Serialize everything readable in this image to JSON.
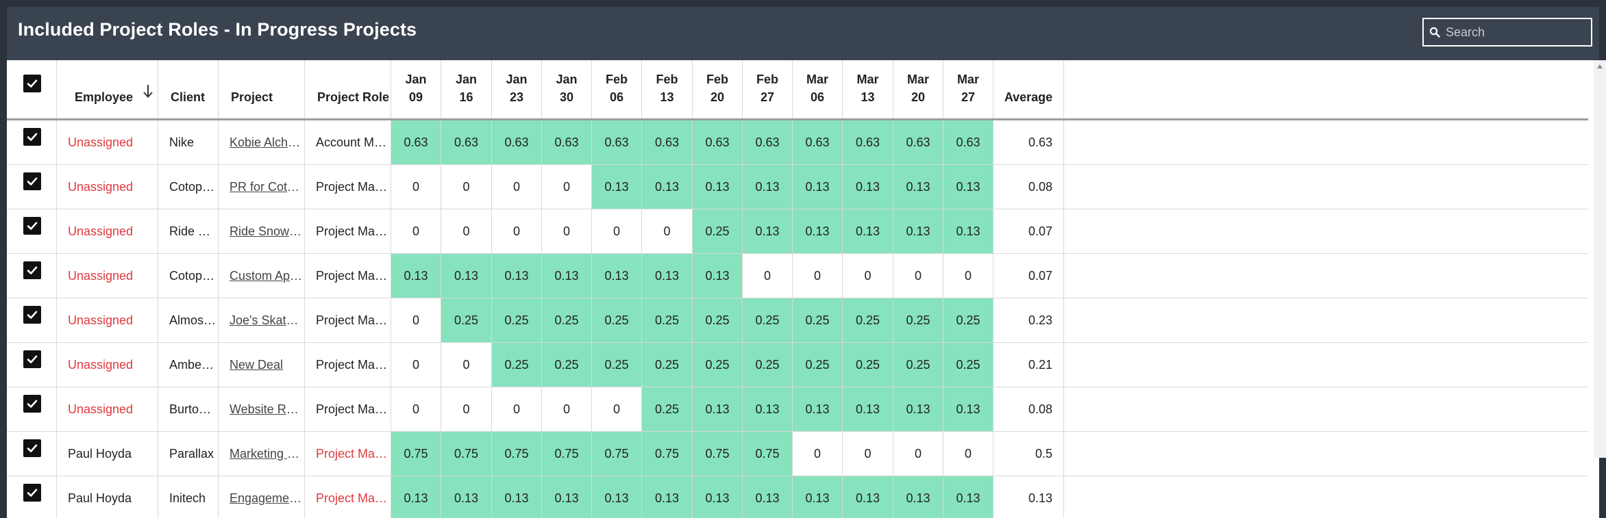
{
  "header": {
    "title": "Included Project Roles - In Progress Projects",
    "search_placeholder": "Search",
    "search_icon": "search-icon"
  },
  "columns": {
    "employee": "Employee",
    "client": "Client",
    "project": "Project",
    "role": "Project Role",
    "average": "Average",
    "sort_icon": "arrow-down-icon",
    "weeks": [
      {
        "m": "Jan",
        "d": "09"
      },
      {
        "m": "Jan",
        "d": "16"
      },
      {
        "m": "Jan",
        "d": "23"
      },
      {
        "m": "Jan",
        "d": "30"
      },
      {
        "m": "Feb",
        "d": "06"
      },
      {
        "m": "Feb",
        "d": "13"
      },
      {
        "m": "Feb",
        "d": "20"
      },
      {
        "m": "Feb",
        "d": "27"
      },
      {
        "m": "Mar",
        "d": "06"
      },
      {
        "m": "Mar",
        "d": "13"
      },
      {
        "m": "Mar",
        "d": "20"
      },
      {
        "m": "Mar",
        "d": "27"
      }
    ]
  },
  "colors": {
    "allocated": "#86e3bd",
    "unassigned": "#e0393e",
    "header_bg": "#3a4350"
  },
  "rows": [
    {
      "employee": "Unassigned",
      "employee_red": true,
      "client": "Nike",
      "project": "Kobie Alchemy Lo...",
      "role": "Account Manager",
      "role_red": false,
      "values": [
        "0.63",
        "0.63",
        "0.63",
        "0.63",
        "0.63",
        "0.63",
        "0.63",
        "0.63",
        "0.63",
        "0.63",
        "0.63",
        "0.63"
      ],
      "average": "0.63"
    },
    {
      "employee": "Unassigned",
      "employee_red": true,
      "client": "Cotopaxi",
      "project": "PR for Cotopaxi",
      "role": "Project Manager",
      "role_red": false,
      "values": [
        "0",
        "0",
        "0",
        "0",
        "0.13",
        "0.13",
        "0.13",
        "0.13",
        "0.13",
        "0.13",
        "0.13",
        "0.13"
      ],
      "average": "0.08"
    },
    {
      "employee": "Unassigned",
      "employee_red": true,
      "client": "Ride Snow...",
      "project": "Ride Snowboards...",
      "role": "Project Manager",
      "role_red": false,
      "values": [
        "0",
        "0",
        "0",
        "0",
        "0",
        "0",
        "0.25",
        "0.13",
        "0.13",
        "0.13",
        "0.13",
        "0.13"
      ],
      "average": "0.07"
    },
    {
      "employee": "Unassigned",
      "employee_red": true,
      "client": "Cotopaxi",
      "project": "Custom App for t...",
      "role": "Project Manager",
      "role_red": false,
      "values": [
        "0.13",
        "0.13",
        "0.13",
        "0.13",
        "0.13",
        "0.13",
        "0.13",
        "0",
        "0",
        "0",
        "0",
        "0"
      ],
      "average": "0.07"
    },
    {
      "employee": "Unassigned",
      "employee_red": true,
      "client": "Almost Sk...",
      "project": "Joe's Skateboard ...",
      "role": "Project Manager",
      "role_red": false,
      "values": [
        "0",
        "0.25",
        "0.25",
        "0.25",
        "0.25",
        "0.25",
        "0.25",
        "0.25",
        "0.25",
        "0.25",
        "0.25",
        "0.25"
      ],
      "average": "0.23"
    },
    {
      "employee": "Unassigned",
      "employee_red": true,
      "client": "Amber Ph...",
      "project": "New Deal",
      "role": "Project Manager",
      "role_red": false,
      "values": [
        "0",
        "0",
        "0.25",
        "0.25",
        "0.25",
        "0.25",
        "0.25",
        "0.25",
        "0.25",
        "0.25",
        "0.25",
        "0.25"
      ],
      "average": "0.21"
    },
    {
      "employee": "Unassigned",
      "employee_red": true,
      "client": "Burton Sn...",
      "project": "Website Redesign...",
      "role": "Project Manager",
      "role_red": false,
      "values": [
        "0",
        "0",
        "0",
        "0",
        "0",
        "0.25",
        "0.13",
        "0.13",
        "0.13",
        "0.13",
        "0.13",
        "0.13"
      ],
      "average": "0.08"
    },
    {
      "employee": "Paul Hoyda",
      "employee_red": false,
      "client": "Parallax",
      "project": "Marketing Websit...",
      "role": "Project Manager",
      "role_red": true,
      "values": [
        "0.75",
        "0.75",
        "0.75",
        "0.75",
        "0.75",
        "0.75",
        "0.75",
        "0.75",
        "0",
        "0",
        "0",
        "0"
      ],
      "average": "0.5"
    },
    {
      "employee": "Paul Hoyda",
      "employee_red": false,
      "client": "Initech",
      "project": "Engagement with ...",
      "role": "Project Manager",
      "role_red": true,
      "values": [
        "0.13",
        "0.13",
        "0.13",
        "0.13",
        "0.13",
        "0.13",
        "0.13",
        "0.13",
        "0.13",
        "0.13",
        "0.13",
        "0.13"
      ],
      "average": "0.13"
    }
  ]
}
